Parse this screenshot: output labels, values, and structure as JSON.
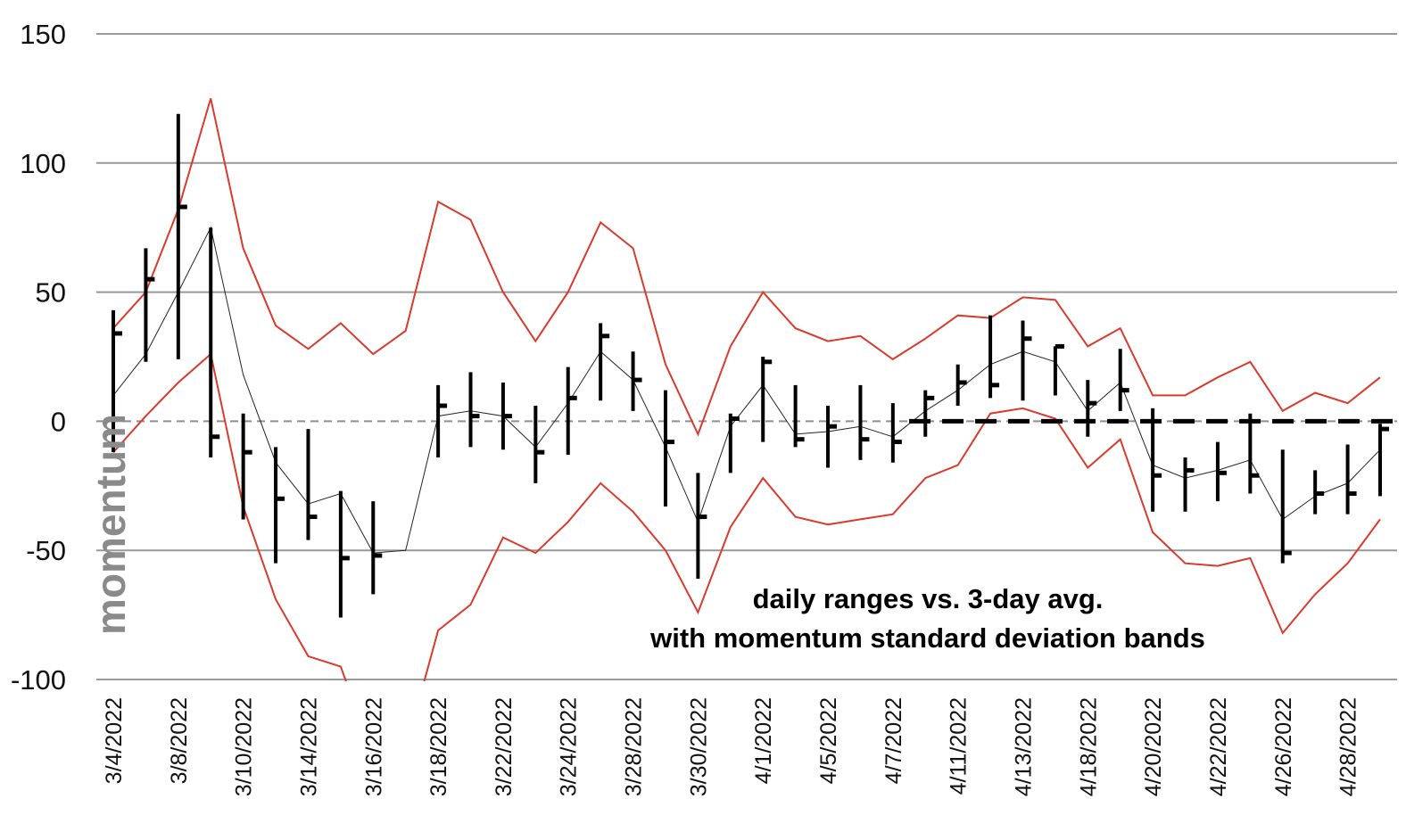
{
  "chart_data": {
    "type": "line",
    "ylabel": "momentum",
    "ylim": [
      -100,
      150
    ],
    "y_ticks": [
      150,
      100,
      50,
      0,
      -50,
      -100
    ],
    "grid": true,
    "annotation": [
      "daily ranges vs. 3-day avg.",
      "with momentum standard deviation bands"
    ],
    "colors": {
      "bands": "#d93a2b",
      "avg": "#222222",
      "bars": "#000000",
      "grid": "#999999",
      "zero": "#8f8f8f",
      "ylabel": "#8a8a8a"
    },
    "x": [
      "3/4/2022",
      "3/7/2022",
      "3/8/2022",
      "3/9/2022",
      "3/10/2022",
      "3/11/2022",
      "3/14/2022",
      "3/15/2022",
      "3/16/2022",
      "3/17/2022",
      "3/18/2022",
      "3/21/2022",
      "3/22/2022",
      "3/23/2022",
      "3/24/2022",
      "3/25/2022",
      "3/28/2022",
      "3/29/2022",
      "3/30/2022",
      "3/31/2022",
      "4/1/2022",
      "4/4/2022",
      "4/5/2022",
      "4/6/2022",
      "4/7/2022",
      "4/8/2022",
      "4/11/2022",
      "4/12/2022",
      "4/13/2022",
      "4/14/2022",
      "4/18/2022",
      "4/19/2022",
      "4/20/2022",
      "4/21/2022",
      "4/22/2022",
      "4/25/2022",
      "4/26/2022",
      "4/27/2022",
      "4/28/2022",
      "4/29/2022"
    ],
    "x_tick_labels": [
      "3/4/2022",
      "3/8/2022",
      "3/10/2022",
      "3/14/2022",
      "3/16/2022",
      "3/18/2022",
      "3/22/2022",
      "3/24/2022",
      "3/28/2022",
      "3/30/2022",
      "4/1/2022",
      "4/5/2022",
      "4/7/2022",
      "4/11/2022",
      "4/13/2022",
      "4/18/2022",
      "4/20/2022",
      "4/22/2022",
      "4/26/2022",
      "4/28/2022"
    ],
    "daily_ranges": {
      "high": [
        43,
        67,
        119,
        75,
        3,
        -10,
        -3,
        -27,
        -31,
        null,
        14,
        19,
        15,
        6,
        21,
        38,
        27,
        12,
        -20,
        3,
        25,
        14,
        6,
        14,
        7,
        12,
        22,
        41,
        39,
        29,
        16,
        28,
        5,
        -14,
        -8,
        3,
        -11,
        -19,
        -9,
        -1
      ],
      "low": [
        -12,
        23,
        24,
        -14,
        -38,
        -55,
        -46,
        -76,
        -67,
        null,
        -14,
        -10,
        -11,
        -24,
        -13,
        8,
        4,
        -33,
        -61,
        -20,
        -8,
        -10,
        -18,
        -15,
        -16,
        -6,
        6,
        9,
        8,
        10,
        -6,
        4,
        -35,
        -35,
        -31,
        -28,
        -55,
        -36,
        -36,
        -29
      ],
      "close": [
        34,
        55,
        83,
        -6,
        -12,
        -30,
        -37,
        -53,
        -52,
        null,
        6,
        2,
        2,
        -12,
        9,
        33,
        16,
        -8,
        -37,
        1,
        23,
        -7,
        -2,
        -7,
        -8,
        9,
        15,
        14,
        32,
        29,
        7,
        12,
        -21,
        -19,
        -20,
        -21,
        -51,
        -28,
        -28,
        -3
      ]
    },
    "series": [
      {
        "values": [
          10,
          26,
          50,
          75,
          18,
          -16,
          -32,
          -28,
          -51,
          -50,
          2,
          4,
          2,
          -10,
          7,
          27,
          16,
          -10,
          -39,
          -2,
          14,
          -5,
          -4,
          -2,
          -6,
          4,
          12,
          22,
          27,
          23,
          4,
          15,
          -17,
          -22,
          -19,
          -15,
          -38,
          -29,
          -24,
          -11
        ]
      },
      {
        "values": [
          36,
          50,
          82,
          125,
          67,
          37,
          28,
          38,
          26,
          35,
          85,
          78,
          50,
          31,
          50,
          77,
          67,
          22,
          -5,
          29,
          50,
          36,
          31,
          33,
          24,
          32,
          41,
          40,
          48,
          47,
          29,
          36,
          10,
          10,
          17,
          23,
          4,
          11,
          7,
          17
        ]
      },
      {
        "values": [
          -12,
          2,
          15,
          26,
          -33,
          -69,
          -91,
          -95,
          -130,
          -127,
          -81,
          -71,
          -45,
          -51,
          -39,
          -24,
          -35,
          -50,
          -74,
          -41,
          -22,
          -37,
          -40,
          -38,
          -36,
          -22,
          -17,
          3,
          5,
          1,
          -18,
          -7,
          -43,
          -55,
          -56,
          -53,
          -82,
          -67,
          -55,
          -38
        ]
      },
      {
        "values": [
          null,
          null,
          null,
          null,
          null,
          null,
          null,
          null,
          null,
          null,
          null,
          null,
          null,
          null,
          null,
          null,
          null,
          null,
          null,
          null,
          null,
          null,
          null,
          null,
          null,
          0,
          0,
          0,
          0,
          0,
          0,
          0,
          0,
          0,
          0,
          0,
          0,
          0,
          0,
          0
        ]
      }
    ]
  }
}
